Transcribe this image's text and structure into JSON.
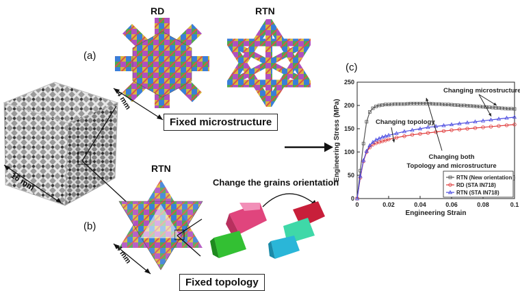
{
  "labels": {
    "panel_a": "(a)",
    "panel_b": "(b)",
    "panel_c": "(c)",
    "rd": "RD",
    "rtn_top": "RTN",
    "rtn_bottom": "RTN",
    "dim_4mm_top": "4 mm",
    "dim_4mm_bottom": "4 mm",
    "dim_16mm": "16 mm",
    "fixed_microstructure": "Fixed microstructure",
    "fixed_topology": "Fixed topology",
    "change_grains": "Change the grains orientation"
  },
  "chart_data": {
    "type": "line",
    "xlabel": "Engineering Strain",
    "ylabel": "Engineering Stress (MPa)",
    "xlim": [
      0,
      0.1
    ],
    "ylim": [
      0,
      250
    ],
    "xticks": [
      "0",
      "0.02",
      "0.04",
      "0.06",
      "0.08",
      "0.1"
    ],
    "yticks": [
      "0",
      "50",
      "100",
      "150",
      "200",
      "250"
    ],
    "legend_position": "bottom-right",
    "series": [
      {
        "name": "RTN (New orientation )",
        "color": "#555555",
        "marker": "square",
        "x": [
          0,
          0.002,
          0.004,
          0.006,
          0.008,
          0.01,
          0.012,
          0.014,
          0.016,
          0.018,
          0.02,
          0.022,
          0.024,
          0.026,
          0.028,
          0.03,
          0.032,
          0.034,
          0.036,
          0.038,
          0.04,
          0.042,
          0.044,
          0.046,
          0.048,
          0.05,
          0.052,
          0.054,
          0.056,
          0.058,
          0.06,
          0.062,
          0.064,
          0.066,
          0.068,
          0.07,
          0.072,
          0.074,
          0.076,
          0.078,
          0.08,
          0.082,
          0.084,
          0.086,
          0.088,
          0.09,
          0.092,
          0.094,
          0.096,
          0.098,
          0.1
        ],
        "y": [
          0,
          60,
          118,
          165,
          186,
          194,
          198,
          200,
          201,
          202,
          202,
          202.5,
          203,
          203,
          203,
          203,
          203.5,
          204,
          204,
          204,
          204,
          204,
          204,
          204,
          203.5,
          203,
          203,
          202.5,
          202,
          202,
          201.5,
          201,
          200.5,
          200,
          200,
          199.5,
          199,
          198.5,
          198,
          197.5,
          197,
          196.5,
          196,
          195.5,
          195,
          194.5,
          194,
          193.5,
          193,
          193,
          192.5
        ]
      },
      {
        "name": "RD (STA IN718)",
        "color": "#e03a3a",
        "marker": "circle",
        "x": [
          0,
          0.002,
          0.004,
          0.006,
          0.008,
          0.01,
          0.012,
          0.014,
          0.016,
          0.018,
          0.02,
          0.025,
          0.03,
          0.035,
          0.04,
          0.045,
          0.05,
          0.055,
          0.06,
          0.065,
          0.07,
          0.075,
          0.08,
          0.085,
          0.09,
          0.095,
          0.1
        ],
        "y": [
          0,
          45,
          80,
          100,
          110,
          116,
          119,
          121,
          123,
          125,
          127,
          131,
          134,
          137,
          139,
          141,
          143,
          145,
          147,
          148.5,
          150,
          151.5,
          153,
          154.5,
          156,
          157.5,
          159
        ]
      },
      {
        "name": "RTN (STA IN718)",
        "color": "#4a4ae0",
        "marker": "triangle",
        "x": [
          0,
          0.002,
          0.004,
          0.006,
          0.008,
          0.01,
          0.012,
          0.014,
          0.016,
          0.018,
          0.02,
          0.025,
          0.03,
          0.035,
          0.04,
          0.045,
          0.05,
          0.055,
          0.06,
          0.065,
          0.07,
          0.075,
          0.08,
          0.085,
          0.09,
          0.095,
          0.1
        ],
        "y": [
          0,
          48,
          82,
          102,
          114,
          121,
          126,
          129,
          132,
          134,
          136,
          140,
          144,
          147,
          150,
          153,
          155,
          157,
          159,
          161,
          163,
          165,
          167,
          169,
          171,
          173,
          175
        ]
      }
    ],
    "annotations": [
      "Changing microstructure",
      "Changing topology",
      "Changing both",
      "Topology and microstructure"
    ]
  }
}
